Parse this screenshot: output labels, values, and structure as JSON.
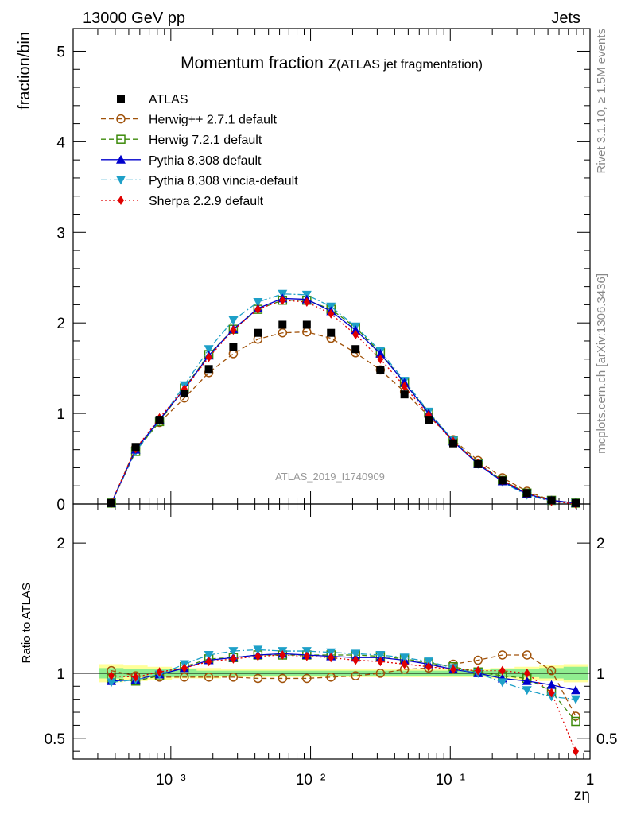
{
  "header": {
    "energy": "13000 GeV pp",
    "category": "Jets"
  },
  "side_labels": {
    "rivet": "Rivet 3.1.10, ≥ 1.5M events",
    "site": "mcplots.cern.ch [arXiv:1306.3436]"
  },
  "colors": {
    "ATLAS": "#000000",
    "Herwig++ 2.7.1 default": "#a0520a",
    "Herwig 7.2.1 default": "#3c8a0a",
    "Pythia 8.308 default": "#0000cc",
    "Pythia 8.308 vincia-default": "#1ea0c8",
    "Sherpa 2.2.9 default": "#e00000",
    "band_inner": "#90ee90",
    "band_outer": "#ffff99"
  },
  "chart_data": [
    {
      "type": "line",
      "title": "Momentum fraction z",
      "title_suffix": "(ATLAS jet fragmentation)",
      "ylabel": "fraction/bin",
      "xlabel": "zη",
      "xscale": "log",
      "xlim": [
        0.0002,
        1.0
      ],
      "ylim": [
        0,
        5.25
      ],
      "yticks": [
        0,
        1,
        2,
        3,
        4,
        5
      ],
      "ytick_labels": [
        "0",
        "1",
        "2",
        "3",
        "4",
        "5"
      ],
      "watermark": "ATLAS_2019_I1740909",
      "x": [
        0.000375,
        0.00056,
        0.00083,
        0.00125,
        0.00187,
        0.0028,
        0.0042,
        0.0063,
        0.0094,
        0.014,
        0.021,
        0.0316,
        0.047,
        0.07,
        0.105,
        0.158,
        0.236,
        0.354,
        0.53,
        0.79
      ],
      "legend": [
        "ATLAS",
        "Herwig++ 2.7.1 default",
        "Herwig 7.2.1 default",
        "Pythia 8.308 default",
        "Pythia 8.308 vincia-default",
        "Sherpa 2.2.9 default"
      ],
      "series": [
        {
          "name": "ATLAS",
          "values": [
            0.01,
            0.63,
            0.93,
            1.22,
            1.49,
            1.73,
            1.89,
            1.98,
            1.98,
            1.89,
            1.71,
            1.48,
            1.21,
            0.93,
            0.67,
            0.44,
            0.26,
            0.12,
            0.04,
            0.01
          ]
        },
        {
          "name": "Herwig++ 2.7.1 default",
          "values": [
            0.01,
            0.62,
            0.9,
            1.17,
            1.45,
            1.66,
            1.82,
            1.89,
            1.9,
            1.83,
            1.67,
            1.48,
            1.24,
            0.97,
            0.71,
            0.48,
            0.29,
            0.14,
            0.04,
            0.01
          ]
        },
        {
          "name": "Herwig 7.2.1 default",
          "values": [
            0.01,
            0.58,
            0.91,
            1.28,
            1.65,
            1.93,
            2.15,
            2.25,
            2.25,
            2.15,
            1.95,
            1.67,
            1.34,
            1.01,
            0.7,
            0.45,
            0.26,
            0.12,
            0.04,
            0.01
          ]
        },
        {
          "name": "Pythia 8.308 default",
          "values": [
            0.01,
            0.6,
            0.93,
            1.27,
            1.64,
            1.93,
            2.16,
            2.27,
            2.26,
            2.13,
            1.92,
            1.66,
            1.34,
            1.0,
            0.69,
            0.44,
            0.25,
            0.11,
            0.04,
            0.01
          ]
        },
        {
          "name": "Pythia 8.308 vincia-default",
          "values": [
            0.01,
            0.58,
            0.92,
            1.31,
            1.71,
            2.03,
            2.23,
            2.32,
            2.31,
            2.18,
            1.96,
            1.69,
            1.36,
            1.02,
            0.7,
            0.44,
            0.24,
            0.1,
            0.03,
            0.01
          ]
        },
        {
          "name": "Sherpa 2.2.9 default",
          "values": [
            0.01,
            0.61,
            0.95,
            1.27,
            1.62,
            1.92,
            2.15,
            2.25,
            2.23,
            2.1,
            1.87,
            1.6,
            1.3,
            0.98,
            0.69,
            0.45,
            0.26,
            0.12,
            0.03,
            0.0
          ]
        }
      ]
    },
    {
      "type": "line",
      "ylabel": "Ratio to ATLAS",
      "xscale": "log",
      "xlim": [
        0.0002,
        1.0
      ],
      "ylim": [
        0.34,
        2.3
      ],
      "yticks": [
        0.5,
        1,
        2
      ],
      "ytick_labels": [
        "0.5",
        "1",
        "2"
      ],
      "xtick_labels": [
        "10⁻³",
        "10⁻²",
        "10⁻¹",
        "1"
      ],
      "x": [
        0.000375,
        0.00056,
        0.00083,
        0.00125,
        0.00187,
        0.0028,
        0.0042,
        0.0063,
        0.0094,
        0.014,
        0.021,
        0.0316,
        0.047,
        0.07,
        0.105,
        0.158,
        0.236,
        0.354,
        0.53,
        0.79
      ],
      "band_inner": [
        0.04,
        0.03,
        0.03,
        0.03,
        0.02,
        0.02,
        0.02,
        0.02,
        0.02,
        0.02,
        0.02,
        0.02,
        0.02,
        0.02,
        0.02,
        0.02,
        0.03,
        0.03,
        0.04,
        0.05
      ],
      "band_outer": [
        0.07,
        0.06,
        0.05,
        0.04,
        0.04,
        0.03,
        0.03,
        0.03,
        0.03,
        0.03,
        0.03,
        0.03,
        0.03,
        0.03,
        0.03,
        0.03,
        0.04,
        0.05,
        0.06,
        0.07
      ],
      "series": [
        {
          "name": "Herwig++ 2.7.1 default",
          "values": [
            1.02,
            0.98,
            0.97,
            0.97,
            0.97,
            0.97,
            0.96,
            0.96,
            0.96,
            0.97,
            0.98,
            1.0,
            1.03,
            1.04,
            1.07,
            1.1,
            1.14,
            1.14,
            1.02,
            0.67
          ]
        },
        {
          "name": "Herwig 7.2.1 default",
          "values": [
            0.96,
            0.94,
            0.98,
            1.05,
            1.11,
            1.12,
            1.14,
            1.14,
            1.14,
            1.14,
            1.14,
            1.13,
            1.11,
            1.08,
            1.05,
            1.01,
            0.98,
            0.96,
            0.86,
            0.63
          ]
        },
        {
          "name": "Pythia 8.308 default",
          "values": [
            0.94,
            0.95,
            0.99,
            1.04,
            1.1,
            1.12,
            1.14,
            1.15,
            1.14,
            1.13,
            1.12,
            1.12,
            1.1,
            1.07,
            1.03,
            1.0,
            0.96,
            0.94,
            0.91,
            0.87
          ]
        },
        {
          "name": "Pythia 8.308 vincia-default",
          "values": [
            0.93,
            0.95,
            0.99,
            1.07,
            1.14,
            1.17,
            1.18,
            1.17,
            1.17,
            1.16,
            1.15,
            1.14,
            1.12,
            1.09,
            1.04,
            1.0,
            0.93,
            0.87,
            0.82,
            0.8
          ]
        },
        {
          "name": "Sherpa 2.2.9 default",
          "values": [
            0.98,
            0.97,
            1.01,
            1.04,
            1.09,
            1.11,
            1.13,
            1.14,
            1.13,
            1.12,
            1.1,
            1.09,
            1.07,
            1.05,
            1.03,
            1.02,
            1.02,
            1.0,
            0.85,
            0.4
          ]
        }
      ]
    }
  ]
}
